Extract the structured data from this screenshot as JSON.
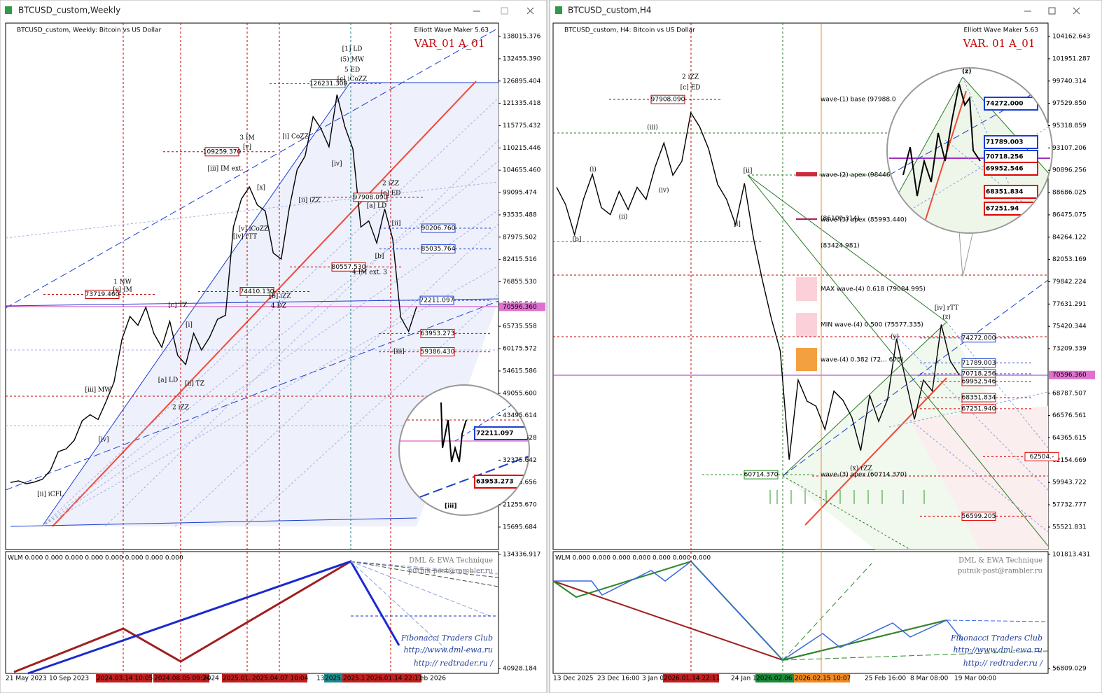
{
  "windows": [
    {
      "title": "BTCUSD_custom,Weekly",
      "header": "BTCUSD_custom, Weekly:  Bitcoin vs US Dollar",
      "brand": "Elliott Wave Maker 5.63",
      "variant": "VAR_01 A_01",
      "price_axis": {
        "ylim": [
          10101,
          141337
        ],
        "ticks": [
          138015.376,
          {
            "value": 132455.39,
            "label": "132455.390"
          },
          126895.404,
          121335.418,
          115775.432,
          110215.446,
          {
            "value": 104655.46,
            "label": "104655.460"
          },
          99095.474,
          93535.488,
          87975.502,
          82415.516,
          {
            "value": 76855.53,
            "label": "76855.530"
          },
          71295.544,
          65735.558,
          60175.572,
          54615.586,
          {
            "value": 49055.6,
            "label": "49055.600"
          },
          43495.614,
          37935.628,
          32375.642,
          26815.656,
          {
            "value": 21255.67,
            "label": "21255.670"
          },
          15695.684
        ],
        "current": {
          "value": 70596.36,
          "label": "70596.360"
        }
      },
      "series": [
        26800,
        27200,
        26500,
        26900,
        27600,
        29800,
        34500,
        35200,
        37300,
        42200,
        43700,
        42500,
        47000,
        51800,
        62500,
        68200,
        66000,
        70500,
        64000,
        60500,
        67000,
        58500,
        56200,
        64000,
        59800,
        63000,
        67500,
        68500,
        90500,
        97500,
        100500,
        96000,
        94500,
        84000,
        82500,
        95000,
        104800,
        108200,
        118000,
        115000,
        110500,
        123500,
        115500,
        110000,
        90500,
        92000,
        86500,
        95000,
        87500,
        68000,
        64500,
        70600
      ],
      "wave_labels": [
        "[1] LD",
        "(5) MW",
        "5 ED",
        "[c] iCoZZ",
        "3 IM",
        "[v]",
        "[i] CoZZ",
        "[iii] IM ext.",
        "[x]",
        "[ii] iZZ",
        "[v] iCoZZ",
        "[iv] rTT",
        "[iv]",
        "2 iZZ",
        "[c] ED",
        "[a] LD",
        "[ii]",
        "[b]",
        "4 IM ext. 3",
        "1 NW",
        "[v] IM",
        "[c] TZ",
        "[b] iZZ",
        "4 DZ",
        "[i]",
        "[a] LD",
        "[ii] TZ",
        "2 iZZ",
        "[iii] MW",
        "[iv]",
        "[ii] iCFL",
        "[iii]"
      ],
      "price_boxes": [
        {
          "value": 126231.3,
          "label": "126231.300",
          "color": "#1a7f7f"
        },
        {
          "value": 109259.37,
          "label": "109259.370",
          "color": "#c00000"
        },
        {
          "value": 97908.09,
          "label": "97908.090",
          "color": "#c00000"
        },
        {
          "value": 90206.76,
          "label": "90206.760",
          "color": "#1a3fd0"
        },
        {
          "value": 85035.764,
          "label": "85035.764",
          "color": "#1a3fd0"
        },
        {
          "value": 80557.53,
          "label": "80557.530",
          "color": "#c00000"
        },
        {
          "value": 74410.13,
          "label": "74410.130",
          "color": "#c00000"
        },
        {
          "value": 73719.46,
          "label": "73719.460",
          "color": "#c00000"
        },
        {
          "value": 72211.097,
          "label": "72211.097",
          "color": "#1a3fd0"
        },
        {
          "value": 63953.273,
          "label": "63953.273",
          "color": "#e00000"
        },
        {
          "value": 59386.43,
          "label": "59386.430",
          "color": "#e00000"
        }
      ],
      "magnifier_boxes": [
        "72211.097",
        "63953.273",
        "[iii]"
      ],
      "dates": [
        "21 May 2023",
        "10 Sep 2023",
        "2024.03.14 10:05",
        "2024.08.05 09:24",
        "2024",
        "2025.01.2",
        "2025.04.07 10:04",
        "13",
        "2025.",
        "2025.1",
        "2026.01.14 22:11",
        "eb 2026"
      ],
      "indicator": {
        "label": "WLM 0.000 0.000 0.000 0.000 0.000 0.000 0.000 0.000",
        "ylim": [
          36917,
          136629
        ],
        "ticks": [
          134336.917,
          40928.184
        ],
        "watermark": [
          "DML & EWA Technique",
          "putnik-post@rambler.ru",
          "Fibonacci   Traders   Club",
          "http://www.dml-ewa.ru",
          "http:// redtrader.ru /"
        ]
      }
    },
    {
      "title": "BTCUSD_custom,H4",
      "header": "BTCUSD_custom, H4:  Bitcoin vs US Dollar",
      "brand": "Elliott Wave Maker 5.63",
      "variant": "VAR. 01 A_01",
      "price_axis": {
        "ylim": [
          53297,
          105484
        ],
        "ticks": [
          104162.643,
          101951.287,
          99740.314,
          {
            "value": 97529.85,
            "label": "97529.850"
          },
          95318.859,
          93107.206,
          90896.256,
          88686.025,
          86475.075,
          84264.122,
          82053.169,
          79842.224,
          77631.291,
          75420.344,
          73209.339,
          68787.507,
          66576.561,
          64365.615,
          62154.669,
          59943.722,
          57732.777,
          55521.831
        ],
        "current": {
          "value": 70596.36,
          "label": "70596.360"
        }
      },
      "series": [
        89200,
        87500,
        84500,
        88000,
        90500,
        87200,
        86500,
        88800,
        87000,
        89200,
        88000,
        91200,
        93600,
        90400,
        91800,
        96600,
        95200,
        93000,
        89500,
        88000,
        85500,
        89600,
        84200,
        80000,
        76200,
        73000,
        62200,
        70100,
        68000,
        67500,
        65200,
        69000,
        68100,
        66400,
        63100,
        68600,
        66000,
        68200,
        74200,
        70200,
        66200,
        70100,
        69000,
        75600,
        72000,
        70600
      ],
      "wave_labels": [
        "2 iZZ",
        "[c] ED",
        "(iii)",
        "(i)",
        "(ii)",
        "(iv)",
        "[b]",
        "[ii]",
        "[i]",
        "[iv] rTT",
        "(z)",
        "(y)",
        "(x) rZZ"
      ],
      "price_boxes": [
        {
          "value": 97908.09,
          "label": "97908.090",
          "color": "#c00000"
        },
        {
          "value": 74272,
          "label": "74272.000",
          "color": "#1a3fd0"
        },
        {
          "value": 71789.003,
          "label": "71789.003",
          "color": "#1a3fd0"
        },
        {
          "value": 70718.256,
          "label": "70718.256",
          "color": "#1a3fd0"
        },
        {
          "value": 69952.546,
          "label": "69952.546",
          "color": "#e00000"
        },
        {
          "value": 68351.834,
          "label": "68351.834",
          "color": "#e00000"
        },
        {
          "value": 67251.94,
          "label": "67251.940",
          "color": "#e00000"
        },
        {
          "value": 62504,
          "label": "62504.-",
          "color": "#e00000"
        },
        {
          "value": 60714.37,
          "label": "60714.370",
          "color": "#1a8a1a"
        },
        {
          "value": 56599.205,
          "label": "56599.205",
          "color": "#e00000"
        }
      ],
      "fib_notes": [
        "wave-(1) base (97988.0",
        "wave-(2) apex (98446",
        "(86100.314)",
        "wave-(3) apex (85993.440)",
        "(83424.981)",
        "MAX wave-(4) 0.618 (79084.995)",
        "MIN wave-(4) 0.500 (75577.335)",
        "wave-(4) 0.382 (72... 675)",
        "wave-(3) apex (60714.370)"
      ],
      "magnifier_boxes": [
        "74272.000",
        "71789.003",
        "70718.256",
        "69952.546",
        "68351.834",
        "67251.94",
        "(z)"
      ],
      "dates": [
        "13 Dec 2025",
        "23 Dec 16:00",
        "3 Jan 0",
        "2026.01.14 22:11",
        "24 Jan 1",
        "2026.02.06 0",
        "2026.02.15 10:07",
        "25 Feb 16:00",
        "8 Mar 08:00",
        "19 Mar 00:00"
      ],
      "indicator": {
        "label": "WLM 0.000 0.000 0.000 0.000 0.000 0.000 0.000",
        "ylim": [
          54876,
          102918
        ],
        "ticks": [
          101813.431,
          56809.029
        ],
        "watermark": [
          "DML & EWA Technique",
          "putnik-post@rambler.ru",
          "Fibonacci   Traders   Club",
          "http://www.dml-ewa.ru",
          "http:// redtrader.ru /"
        ]
      }
    }
  ]
}
